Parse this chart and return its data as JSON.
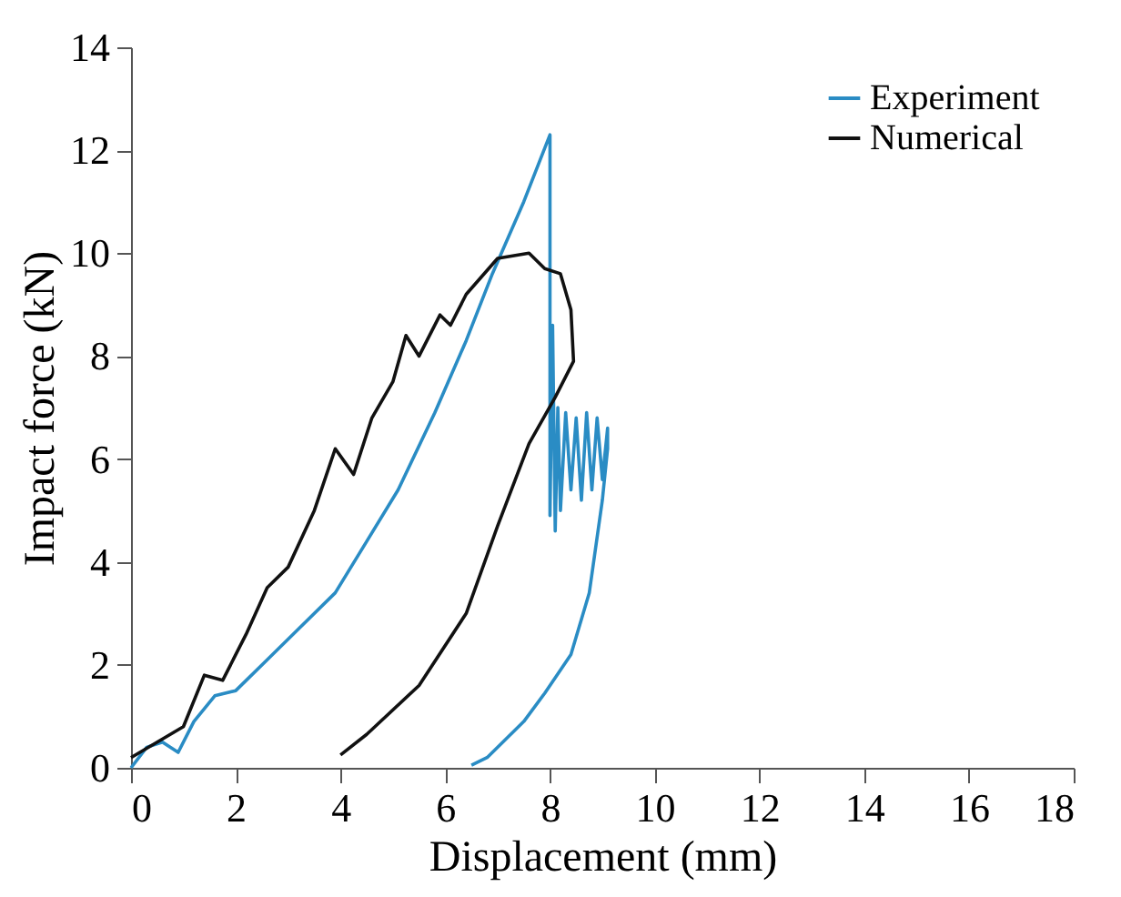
{
  "chart_data": {
    "type": "line",
    "xlabel": "Displacement (mm)",
    "ylabel": "Impact force (kN)",
    "xlim": [
      0,
      18
    ],
    "xticks": [
      0,
      2,
      4,
      6,
      8,
      10,
      12,
      14,
      16,
      18
    ],
    "ylim": [
      0,
      14
    ],
    "yticks": [
      0,
      2,
      4,
      6,
      8,
      10,
      12,
      14
    ],
    "grid": false,
    "legend": "top right",
    "marker": "none",
    "line_style": "solid",
    "series": [
      {
        "name": "Experiment",
        "color": "#2a8cc4",
        "x": [
          0,
          0.3,
          0.6,
          0.9,
          1.2,
          1.6,
          2.0,
          2.6,
          3.2,
          3.9,
          4.5,
          5.1,
          5.8,
          6.4,
          6.9,
          7.5,
          8.0,
          8.0,
          8.05,
          8.1,
          8.15,
          8.2,
          8.3,
          8.4,
          8.5,
          8.6,
          8.7,
          8.8,
          8.9,
          9.0,
          9.1,
          9.1,
          9.0,
          8.75,
          8.4,
          7.9,
          7.5,
          7.1,
          6.8,
          6.5
        ],
        "values": [
          0,
          0.4,
          0.5,
          0.3,
          0.9,
          1.4,
          1.5,
          2.1,
          2.7,
          3.4,
          4.4,
          5.4,
          6.9,
          8.3,
          9.6,
          11.0,
          12.3,
          4.9,
          8.6,
          4.6,
          7.0,
          5.0,
          6.9,
          5.4,
          6.8,
          5.2,
          6.9,
          5.4,
          6.8,
          5.6,
          6.6,
          6.2,
          5.2,
          3.4,
          2.2,
          1.45,
          0.9,
          0.5,
          0.2,
          0.05
        ]
      },
      {
        "name": "Numerical",
        "color": "#111111",
        "x": [
          0,
          0.5,
          1.0,
          1.4,
          1.75,
          2.2,
          2.6,
          3.0,
          3.5,
          3.9,
          4.25,
          4.6,
          5.0,
          5.25,
          5.5,
          5.9,
          6.1,
          6.4,
          7.0,
          7.6,
          7.9,
          8.2,
          8.4,
          8.45,
          8.1,
          7.6,
          7.0,
          6.4,
          5.5,
          4.5,
          4.0
        ],
        "values": [
          0.2,
          0.5,
          0.8,
          1.8,
          1.7,
          2.6,
          3.5,
          3.9,
          5.0,
          6.2,
          5.7,
          6.8,
          7.5,
          8.4,
          8.0,
          8.8,
          8.6,
          9.2,
          9.9,
          10.0,
          9.7,
          9.6,
          8.9,
          7.9,
          7.2,
          6.3,
          4.7,
          3.0,
          1.6,
          0.65,
          0.25
        ]
      }
    ]
  }
}
